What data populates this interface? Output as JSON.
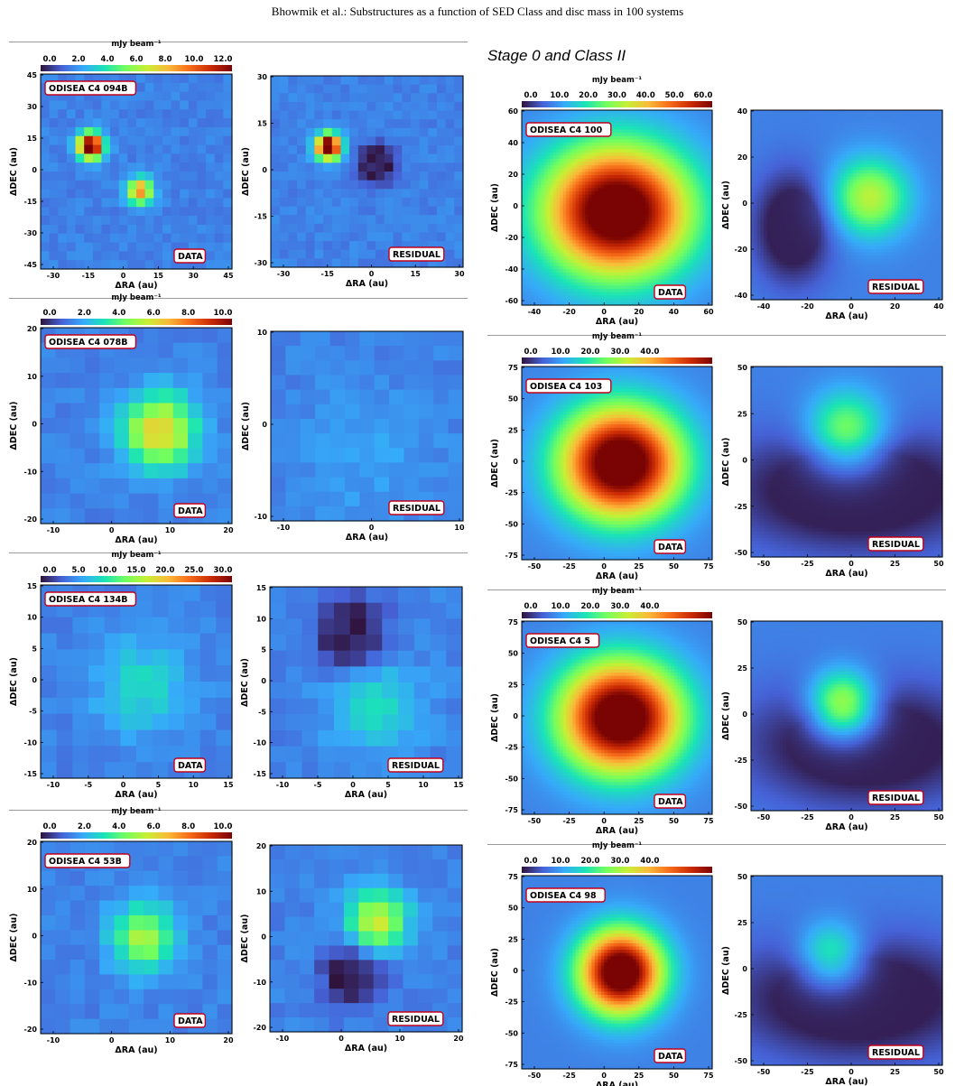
{
  "page": {
    "header": "Bhowmik et al.: Substructures as a function of SED Class and disc mass in 100 systems",
    "section_title": "Stage 0 and Class II"
  },
  "labels": {
    "data": "DATA",
    "residual": "RESIDUAL",
    "xlabel": "ΔRA (au)",
    "ylabel": "ΔDEC (au)",
    "colorbar_unit": "mJy beam⁻¹"
  },
  "colors": {
    "colormap": [
      "#30123b",
      "#4662d7",
      "#36aaf9",
      "#1ae4b6",
      "#72fe5e",
      "#c8ef34",
      "#faba39",
      "#f66b19",
      "#ca2a04",
      "#7a0403"
    ],
    "label_box_border": "#c0001a"
  },
  "chart_data": [
    {
      "type": "heatmap",
      "name": "ODISEA C4 094B",
      "cbar_ticks": [
        "0.0",
        "2.0",
        "4.0",
        "6.0",
        "8.0",
        "10.0",
        "12.0"
      ],
      "data_ticks_x": [
        "-30",
        "-15",
        "0",
        "15",
        "30",
        "45"
      ],
      "data_ticks_y": [
        "45",
        "30",
        "15",
        "0",
        "-15",
        "-30",
        "-45"
      ],
      "res_ticks_x": [
        "-30",
        "-15",
        "0",
        "15",
        "30"
      ],
      "res_ticks_y": [
        "30",
        "15",
        "0",
        "-15",
        "-30"
      ]
    },
    {
      "type": "heatmap",
      "name": "ODISEA C4 078B",
      "cbar_ticks": [
        "0.0",
        "2.0",
        "4.0",
        "6.0",
        "8.0",
        "10.0"
      ],
      "data_ticks_x": [
        "-10",
        "0",
        "10",
        "20"
      ],
      "data_ticks_y": [
        "20",
        "10",
        "0",
        "-10",
        "-20"
      ],
      "res_ticks_x": [
        "-10",
        "0",
        "10"
      ],
      "res_ticks_y": [
        "10",
        "0",
        "-10"
      ]
    },
    {
      "type": "heatmap",
      "name": "ODISEA C4 134B",
      "cbar_ticks": [
        "0.0",
        "5.0",
        "10.0",
        "15.0",
        "20.0",
        "25.0",
        "30.0"
      ],
      "data_ticks_x": [
        "-10",
        "-5",
        "0",
        "5",
        "10",
        "15"
      ],
      "data_ticks_y": [
        "15",
        "10",
        "5",
        "0",
        "-5",
        "-10",
        "-15"
      ],
      "res_ticks_x": [
        "-10",
        "-5",
        "0",
        "5",
        "10",
        "15"
      ],
      "res_ticks_y": [
        "15",
        "10",
        "5",
        "0",
        "-5",
        "-10",
        "-15"
      ]
    },
    {
      "type": "heatmap",
      "name": "ODISEA C4 53B",
      "cbar_ticks": [
        "0.0",
        "2.0",
        "4.0",
        "6.0",
        "8.0",
        "10.0"
      ],
      "data_ticks_x": [
        "-10",
        "0",
        "10",
        "20"
      ],
      "data_ticks_y": [
        "20",
        "10",
        "0",
        "-10",
        "-20"
      ],
      "res_ticks_x": [
        "-10",
        "0",
        "10",
        "20"
      ],
      "res_ticks_y": [
        "20",
        "10",
        "0",
        "-10",
        "-20"
      ]
    },
    {
      "type": "heatmap",
      "name": "ODISEA C4 100",
      "cbar_ticks": [
        "0.0",
        "10.0",
        "20.0",
        "30.0",
        "40.0",
        "50.0",
        "60.0"
      ],
      "data_ticks_x": [
        "-40",
        "-20",
        "0",
        "20",
        "40",
        "60"
      ],
      "data_ticks_y": [
        "60",
        "40",
        "20",
        "0",
        "-20",
        "-40",
        "-60"
      ],
      "res_ticks_x": [
        "-40",
        "-20",
        "0",
        "20",
        "40"
      ],
      "res_ticks_y": [
        "40",
        "20",
        "0",
        "-20",
        "-40"
      ]
    },
    {
      "type": "heatmap",
      "name": "ODISEA C4 103",
      "cbar_ticks": [
        "0.0",
        "10.0",
        "20.0",
        "30.0",
        "40.0"
      ],
      "data_ticks_x": [
        "-50",
        "-25",
        "0",
        "25",
        "50",
        "75"
      ],
      "data_ticks_y": [
        "75",
        "50",
        "25",
        "0",
        "-25",
        "-50",
        "-75"
      ],
      "res_ticks_x": [
        "-50",
        "-25",
        "0",
        "25",
        "50"
      ],
      "res_ticks_y": [
        "50",
        "25",
        "0",
        "-25",
        "-50"
      ]
    },
    {
      "type": "heatmap",
      "name": "ODISEA C4 5",
      "cbar_ticks": [
        "0.0",
        "10.0",
        "20.0",
        "30.0",
        "40.0"
      ],
      "data_ticks_x": [
        "-50",
        "-25",
        "0",
        "25",
        "50",
        "75"
      ],
      "data_ticks_y": [
        "75",
        "50",
        "25",
        "0",
        "-25",
        "-50",
        "-75"
      ],
      "res_ticks_x": [
        "-50",
        "-25",
        "0",
        "25",
        "50"
      ],
      "res_ticks_y": [
        "50",
        "25",
        "0",
        "-25",
        "-50"
      ]
    },
    {
      "type": "heatmap",
      "name": "ODISEA C4 98",
      "cbar_ticks": [
        "0.0",
        "10.0",
        "20.0",
        "30.0",
        "40.0"
      ],
      "data_ticks_x": [
        "-50",
        "-25",
        "0",
        "25",
        "50",
        "75"
      ],
      "data_ticks_y": [
        "75",
        "50",
        "25",
        "0",
        "-25",
        "-50",
        "-75"
      ],
      "res_ticks_x": [
        "-50",
        "-25",
        "0",
        "25",
        "50"
      ],
      "res_ticks_y": [
        "50",
        "25",
        "0",
        "-25",
        "-50"
      ]
    }
  ]
}
